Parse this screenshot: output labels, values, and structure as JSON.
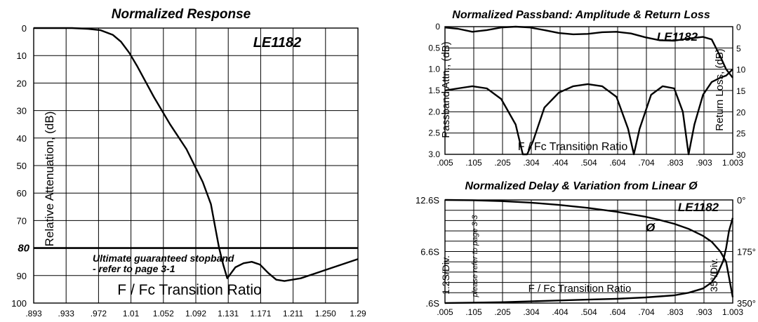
{
  "chart_data": [
    {
      "type": "line",
      "title": "Normalized Response",
      "model": "LE1182",
      "ylabel": "Relative Attenuation, (dB)",
      "xlabel": "F / Fc Transition Ratio",
      "x_ticks": [
        ".893",
        ".933",
        ".972",
        "1.01",
        "1.052",
        "1.092",
        "1.131",
        "1.171",
        "1.211",
        "1.250",
        "1.29"
      ],
      "y_ticks": [
        "0",
        "10",
        "20",
        "30",
        "40",
        "50",
        "60",
        "70",
        "80",
        "90",
        "100"
      ],
      "xlim": [
        0.893,
        1.29
      ],
      "ylim": [
        0,
        100
      ],
      "y_inverted": true,
      "stopband": {
        "value": 80,
        "tick_label": "80",
        "text_line1": "Ultimate guaranteed stopband",
        "text_line2": "- refer to page 3-1"
      },
      "series": [
        {
          "x": [
            0.893,
            0.94,
            0.96,
            0.975,
            0.99,
            1.0,
            1.01,
            1.02,
            1.04,
            1.06,
            1.08,
            1.1,
            1.11,
            1.115,
            1.12,
            1.125,
            1.13,
            1.14,
            1.15,
            1.16,
            1.17,
            1.18,
            1.19,
            1.2,
            1.22,
            1.24,
            1.26,
            1.29
          ],
          "y": [
            0,
            0,
            0.3,
            0.8,
            2.5,
            5,
            9,
            14,
            25,
            35,
            44,
            56,
            64,
            72,
            80,
            86,
            91,
            87,
            85.5,
            85,
            86,
            89,
            91.5,
            92,
            91,
            89,
            87,
            84
          ]
        }
      ]
    },
    {
      "type": "line",
      "title": "Normalized Passband: Amplitude & Return Loss",
      "model": "LE1182",
      "ylabel": "Passband Attn., (dB)",
      "y2label": "Return Loss, (dB)",
      "xlabel": "F / Fc Transition Ratio",
      "x_ticks": [
        ".005",
        ".105",
        ".205",
        ".304",
        ".404",
        ".504",
        ".604",
        ".704",
        ".803",
        ".903",
        "1.003"
      ],
      "y_ticks": [
        "0",
        "0.5",
        "1.0",
        "1.5",
        "2.0",
        "2.5",
        "3.0"
      ],
      "y2_ticks": [
        "0",
        "5",
        "10",
        "15",
        "20",
        "25",
        "30"
      ],
      "xlim": [
        0.005,
        1.003
      ],
      "ylim": [
        0,
        3
      ],
      "y2lim": [
        0,
        30
      ],
      "y_inverted": true,
      "series": [
        {
          "x": [
            0.005,
            0.05,
            0.1,
            0.15,
            0.2,
            0.25,
            0.3,
            0.35,
            0.4,
            0.45,
            0.5,
            0.55,
            0.6,
            0.65,
            0.7,
            0.75,
            0.8,
            0.85,
            0.9,
            0.93,
            0.96,
            0.98,
            1.003
          ],
          "y": [
            0.02,
            0.05,
            0.12,
            0.08,
            0.02,
            0.0,
            0.02,
            0.08,
            0.15,
            0.18,
            0.17,
            0.13,
            0.12,
            0.16,
            0.25,
            0.32,
            0.33,
            0.28,
            0.24,
            0.3,
            0.7,
            1.0,
            1.2
          ]
        },
        {
          "x": [
            0.005,
            0.05,
            0.1,
            0.15,
            0.2,
            0.25,
            0.275,
            0.29,
            0.31,
            0.35,
            0.4,
            0.45,
            0.5,
            0.55,
            0.6,
            0.64,
            0.66,
            0.68,
            0.72,
            0.76,
            0.8,
            0.83,
            0.85,
            0.87,
            0.9,
            0.93,
            0.96,
            0.98,
            1.003
          ],
          "y": [
            15,
            14.5,
            14,
            14.5,
            17,
            23,
            30,
            30,
            27,
            19,
            15.5,
            14,
            13.5,
            14,
            16.5,
            24,
            30,
            24,
            16,
            14,
            14.5,
            20,
            30,
            23,
            16,
            13,
            12,
            11.5,
            10
          ]
        }
      ]
    },
    {
      "type": "line",
      "title": "Normalized Delay & Variation from Linear Ø",
      "model": "LE1182",
      "ylabel": "1.2S/Div.",
      "y2label": "35°/Div.",
      "xlabel": "F / Fc Transition Ratio",
      "side_note": "please refer to page 3-3",
      "phase_symbol": "Ø",
      "x_ticks": [
        ".005",
        ".105",
        ".205",
        ".304",
        ".404",
        ".504",
        ".604",
        ".704",
        ".803",
        ".903",
        "1.003"
      ],
      "y_ticks": [
        "12.6S",
        "6.6S",
        ".6S"
      ],
      "y2_ticks": [
        "0°",
        "175°",
        "350°"
      ],
      "xlim": [
        0.005,
        1.003
      ],
      "ylim": [
        0.6,
        12.6
      ],
      "y2lim": [
        0,
        350
      ],
      "series": [
        {
          "x": [
            0.005,
            0.1,
            0.2,
            0.3,
            0.4,
            0.5,
            0.6,
            0.7,
            0.8,
            0.85,
            0.9,
            0.93,
            0.95,
            0.97,
            0.98,
            0.99,
            1.003
          ],
          "y": [
            0.6,
            0.65,
            0.7,
            0.8,
            0.9,
            1.0,
            1.1,
            1.25,
            1.5,
            1.8,
            2.3,
            3.0,
            4.0,
            5.5,
            7.0,
            9.0,
            10.5
          ]
        },
        {
          "x": [
            0.005,
            0.1,
            0.2,
            0.3,
            0.4,
            0.5,
            0.6,
            0.7,
            0.75,
            0.8,
            0.85,
            0.9,
            0.93,
            0.96,
            0.98,
            1.003
          ],
          "y": [
            0,
            1,
            4,
            9,
            17,
            27,
            40,
            57,
            68,
            81,
            98,
            122,
            142,
            175,
            210,
            330
          ]
        }
      ]
    }
  ]
}
